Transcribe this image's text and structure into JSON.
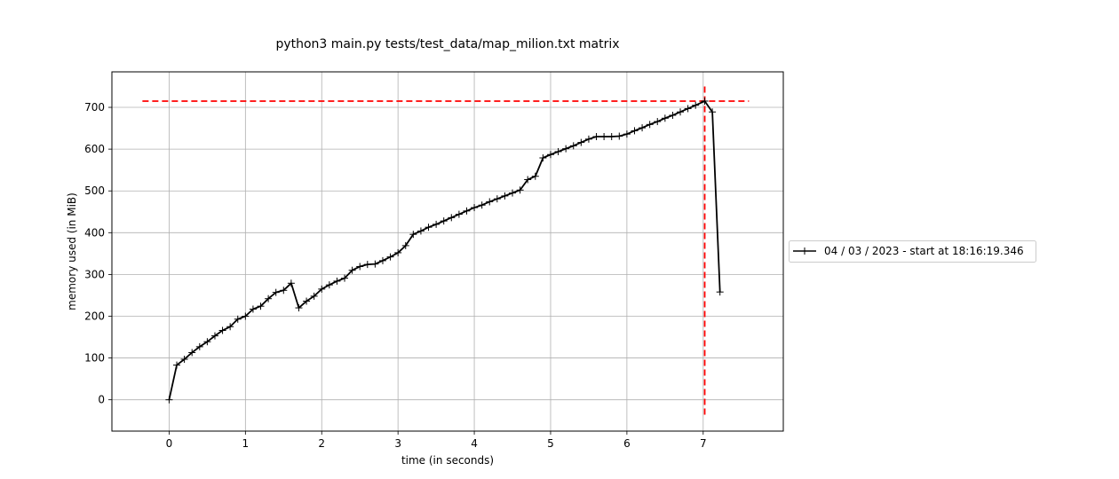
{
  "chart_data": {
    "type": "line",
    "title": "python3 main.py tests/test_data/map_milion.txt matrix",
    "xlabel": "time (in seconds)",
    "ylabel": "memory used (in MiB)",
    "xlim": [
      -0.75,
      8.05
    ],
    "ylim": [
      -75,
      785
    ],
    "xticks": [
      0,
      1,
      2,
      3,
      4,
      5,
      6,
      7
    ],
    "yticks": [
      0,
      100,
      200,
      300,
      400,
      500,
      600,
      700
    ],
    "grid": true,
    "legend_placement": "right",
    "series": [
      {
        "name": "04 / 03 / 2023 - start at 18:16:19.346",
        "color": "#000000",
        "marker": "+",
        "x": [
          0.0,
          0.1,
          0.2,
          0.3,
          0.4,
          0.5,
          0.6,
          0.7,
          0.8,
          0.9,
          1.0,
          1.1,
          1.2,
          1.3,
          1.4,
          1.5,
          1.6,
          1.7,
          1.8,
          1.9,
          2.0,
          2.1,
          2.2,
          2.3,
          2.4,
          2.5,
          2.6,
          2.7,
          2.8,
          2.9,
          3.0,
          3.1,
          3.2,
          3.3,
          3.4,
          3.5,
          3.6,
          3.7,
          3.8,
          3.9,
          4.0,
          4.1,
          4.2,
          4.3,
          4.4,
          4.5,
          4.6,
          4.7,
          4.8,
          4.9,
          5.0,
          5.1,
          5.2,
          5.3,
          5.4,
          5.5,
          5.6,
          5.7,
          5.8,
          5.9,
          6.0,
          6.1,
          6.2,
          6.3,
          6.4,
          6.5,
          6.6,
          6.7,
          6.8,
          6.9,
          7.02,
          7.12,
          7.22
        ],
        "y": [
          0,
          83,
          97,
          113,
          127,
          139,
          153,
          166,
          175,
          193,
          200,
          217,
          224,
          242,
          257,
          262,
          279,
          220,
          236,
          248,
          265,
          275,
          284,
          291,
          310,
          319,
          324,
          325,
          333,
          342,
          352,
          369,
          396,
          404,
          413,
          420,
          428,
          436,
          444,
          452,
          460,
          466,
          474,
          481,
          488,
          495,
          502,
          527,
          535,
          579,
          587,
          594,
          601,
          608,
          616,
          624,
          630,
          630,
          630,
          631,
          636,
          644,
          651,
          659,
          666,
          674,
          681,
          689,
          697,
          705,
          715,
          689,
          258
        ]
      }
    ],
    "annotations": {
      "peak_hline": {
        "y": 715,
        "x_from": -0.35,
        "x_to": 7.6,
        "color": "#ff0000",
        "style": "dashed"
      },
      "peak_vline": {
        "x": 7.02,
        "y_from": -38,
        "y_to": 750,
        "color": "#ff0000",
        "style": "dashed"
      }
    }
  }
}
